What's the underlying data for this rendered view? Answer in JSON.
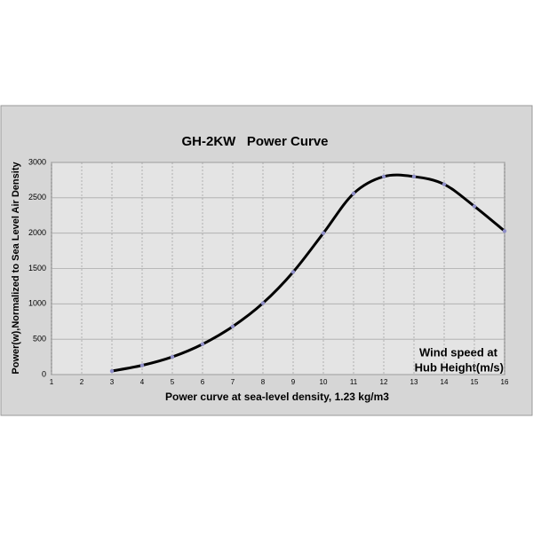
{
  "chart_data": {
    "type": "line",
    "title": "GH-2KW   Power Curve",
    "x_label": "Power curve at sea-level density, 1.23 kg/m3",
    "y_label": "Power(w),Normalized to Sea Level Air Density",
    "annotation": [
      "Wind speed at",
      "Hub Height(m/s)"
    ],
    "x": [
      3,
      4,
      5,
      6,
      7,
      8,
      9,
      10,
      11,
      12,
      13,
      14,
      15,
      16
    ],
    "values": [
      50,
      130,
      250,
      430,
      680,
      1010,
      1450,
      2000,
      2560,
      2800,
      2800,
      2690,
      2380,
      2030
    ],
    "color": "#000000",
    "marker_color": "#8e8ec8",
    "xlim": [
      1,
      16
    ],
    "xticks": [
      1,
      2,
      3,
      4,
      5,
      6,
      7,
      8,
      9,
      10,
      11,
      12,
      13,
      14,
      15,
      16
    ],
    "ylim": [
      0,
      3000
    ],
    "yticks": [
      0,
      500,
      1000,
      1500,
      2000,
      2500,
      3000
    ],
    "grid": true
  }
}
